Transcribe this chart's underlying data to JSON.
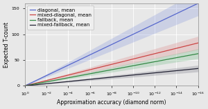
{
  "title": "",
  "xlabel": "Approximation accuracy (diamond norm)",
  "ylabel": "Expected T-count",
  "y_min": 0,
  "y_max": 160,
  "yticks": [
    0,
    50,
    100,
    150
  ],
  "xticks_exp": [
    0,
    -2,
    -4,
    -6,
    -8,
    -10,
    -12,
    -14,
    -16
  ],
  "series": [
    {
      "label": "diagonal, mean",
      "color": "#5566cc",
      "fill_color": "#8899dd",
      "alpha_fill": 0.3,
      "slope": 10.0,
      "slope_low": 8.5,
      "slope_high": 11.5
    },
    {
      "label": "mixed-diagonal, mean",
      "color": "#cc4444",
      "fill_color": "#dd8888",
      "alpha_fill": 0.3,
      "slope": 5.2,
      "slope_low": 4.4,
      "slope_high": 6.0
    },
    {
      "label": "fallback, mean",
      "color": "#338844",
      "fill_color": "#77bb88",
      "alpha_fill": 0.3,
      "slope": 3.9,
      "slope_low": 3.3,
      "slope_high": 4.5
    },
    {
      "label": "mixed-fallback, mean",
      "color": "#222233",
      "fill_color": "#666677",
      "alpha_fill": 0.25,
      "slope": 2.1,
      "slope_low": 1.7,
      "slope_high": 2.5
    }
  ],
  "background_color": "#e8e8e8",
  "plot_bg_color": "#e8e8e8",
  "grid_color": "#ffffff",
  "legend_fontsize": 5.0,
  "axis_fontsize": 5.5,
  "tick_fontsize": 4.5,
  "linewidth": 0.9
}
